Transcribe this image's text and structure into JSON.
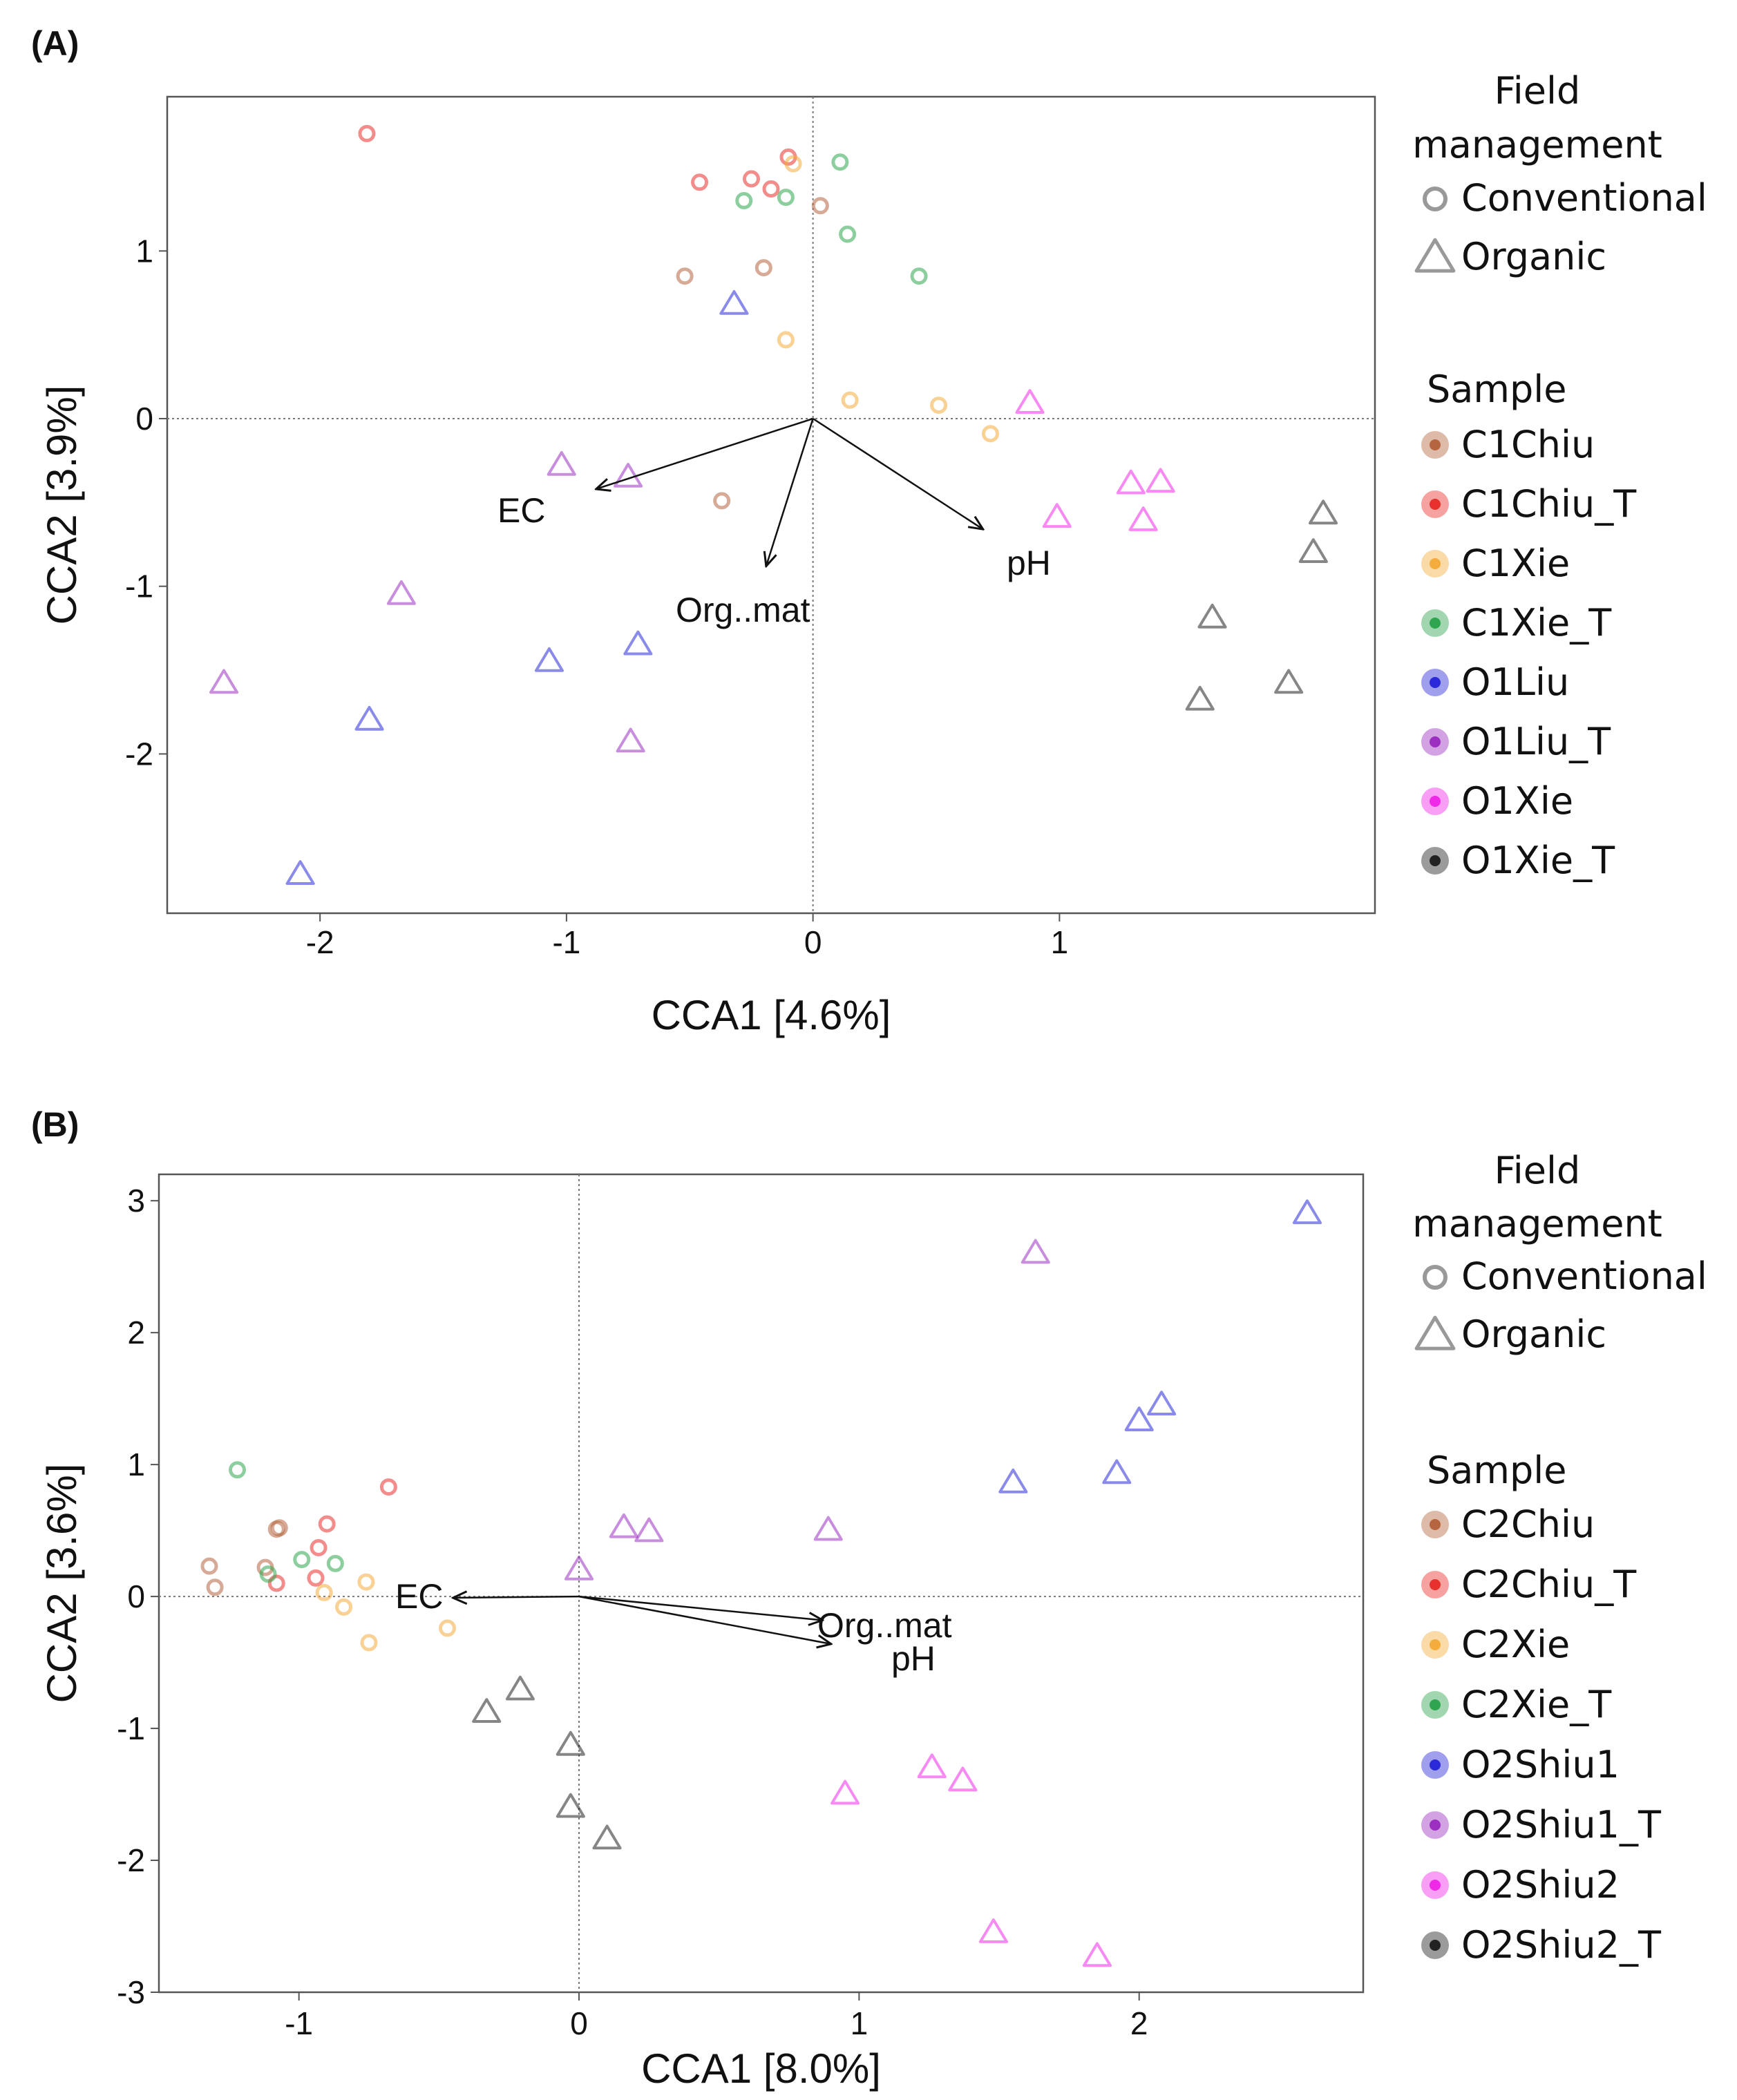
{
  "chart_data": [
    {
      "type": "scatter",
      "panel_label": "(A)",
      "xlabel": "CCA1  [4.6%]",
      "ylabel": "CCA2  [3.9%]",
      "xlim": [
        -2.62,
        2.28
      ],
      "ylim": [
        -2.95,
        1.92
      ],
      "xticks": [
        -2,
        -1,
        0,
        1
      ],
      "yticks": [
        -2,
        -1,
        0,
        1
      ],
      "xtick_labels": [
        "-2",
        "-1",
        "0",
        "1"
      ],
      "ytick_labels": [
        "-2",
        "-1",
        "0",
        "1"
      ],
      "legend": {
        "title1": "Field",
        "title2": "management",
        "shape_entries": [
          {
            "label": "Conventional",
            "shape": "circle"
          },
          {
            "label": "Organic",
            "shape": "triangle"
          }
        ],
        "sample_title": "Sample",
        "sample_entries": [
          {
            "label": "C1Chiu",
            "color": "#b5653f"
          },
          {
            "label": "C1Chiu_T",
            "color": "#e8302c"
          },
          {
            "label": "C1Xie",
            "color": "#f4ac3c"
          },
          {
            "label": "C1Xie_T",
            "color": "#2fa550"
          },
          {
            "label": "O1Liu",
            "color": "#2a2ad8"
          },
          {
            "label": "O1Liu_T",
            "color": "#9b30c0"
          },
          {
            "label": "O1Xie",
            "color": "#f028e8"
          },
          {
            "label": "O1Xie_T",
            "color": "#222222"
          }
        ]
      },
      "vectors": [
        {
          "label": "EC",
          "x": -0.88,
          "y": -0.42
        },
        {
          "label": "Org..mat",
          "x": -0.19,
          "y": -0.88
        },
        {
          "label": "pH",
          "x": 0.69,
          "y": -0.66
        }
      ],
      "series": [
        {
          "name": "C1Chiu",
          "shape": "circle",
          "color": "#b5653f",
          "points": [
            [
              -0.52,
              0.85
            ],
            [
              -0.2,
              0.9
            ],
            [
              0.03,
              1.27
            ],
            [
              -0.37,
              -0.49
            ]
          ]
        },
        {
          "name": "C1Chiu_T",
          "shape": "circle",
          "color": "#e8302c",
          "points": [
            [
              -1.81,
              1.7
            ],
            [
              -0.46,
              1.41
            ],
            [
              -0.25,
              1.43
            ],
            [
              -0.17,
              1.37
            ],
            [
              -0.1,
              1.56
            ]
          ]
        },
        {
          "name": "C1Xie",
          "shape": "circle",
          "color": "#f4ac3c",
          "points": [
            [
              -0.08,
              1.52
            ],
            [
              -0.11,
              0.47
            ],
            [
              0.15,
              0.11
            ],
            [
              0.51,
              0.08
            ],
            [
              0.72,
              -0.09
            ]
          ]
        },
        {
          "name": "C1Xie_T",
          "shape": "circle",
          "color": "#2fa550",
          "points": [
            [
              -0.28,
              1.3
            ],
            [
              -0.11,
              1.32
            ],
            [
              0.11,
              1.53
            ],
            [
              0.14,
              1.1
            ],
            [
              0.43,
              0.85
            ]
          ]
        },
        {
          "name": "O1Liu",
          "shape": "triangle",
          "color": "#2a2ad8",
          "points": [
            [
              -0.32,
              0.68
            ],
            [
              -1.07,
              -1.45
            ],
            [
              -0.71,
              -1.35
            ],
            [
              -1.8,
              -1.8
            ],
            [
              -2.08,
              -2.72
            ]
          ]
        },
        {
          "name": "O1Liu_T",
          "shape": "triangle",
          "color": "#9b30c0",
          "points": [
            [
              -1.02,
              -0.28
            ],
            [
              -0.75,
              -0.35
            ],
            [
              -1.67,
              -1.05
            ],
            [
              -2.39,
              -1.58
            ],
            [
              -0.74,
              -1.93
            ]
          ]
        },
        {
          "name": "O1Xie",
          "shape": "triangle",
          "color": "#f028e8",
          "points": [
            [
              0.88,
              0.09
            ],
            [
              1.29,
              -0.39
            ],
            [
              1.41,
              -0.38
            ],
            [
              0.99,
              -0.59
            ],
            [
              1.34,
              -0.61
            ]
          ]
        },
        {
          "name": "O1Xie_T",
          "shape": "triangle",
          "color": "#222222",
          "points": [
            [
              2.07,
              -0.57
            ],
            [
              2.03,
              -0.8
            ],
            [
              1.62,
              -1.19
            ],
            [
              1.57,
              -1.68
            ],
            [
              1.93,
              -1.58
            ]
          ]
        }
      ]
    },
    {
      "type": "scatter",
      "panel_label": "(B)",
      "xlabel": "CCA1  [8.0%]",
      "ylabel": "CCA2  [3.6%]",
      "xlim": [
        -1.5,
        2.8
      ],
      "ylim": [
        -3.0,
        3.2
      ],
      "xticks": [
        -1,
        0,
        1,
        2
      ],
      "yticks": [
        -3,
        -2,
        -1,
        0,
        1,
        2,
        3
      ],
      "xtick_labels": [
        "-1",
        "0",
        "1",
        "2"
      ],
      "ytick_labels": [
        "-3",
        "-2",
        "-1",
        "0",
        "1",
        "2",
        "3"
      ],
      "legend": {
        "title1": "Field",
        "title2": "management",
        "shape_entries": [
          {
            "label": "Conventional",
            "shape": "circle"
          },
          {
            "label": "Organic",
            "shape": "triangle"
          }
        ],
        "sample_title": "Sample",
        "sample_entries": [
          {
            "label": "C2Chiu",
            "color": "#b5653f"
          },
          {
            "label": "C2Chiu_T",
            "color": "#e8302c"
          },
          {
            "label": "C2Xie",
            "color": "#f4ac3c"
          },
          {
            "label": "C2Xie_T",
            "color": "#2fa550"
          },
          {
            "label": "O2Shiu1",
            "color": "#2a2ad8"
          },
          {
            "label": "O2Shiu1_T",
            "color": "#9b30c0"
          },
          {
            "label": "O2Shiu2",
            "color": "#f028e8"
          },
          {
            "label": "O2Shiu2_T",
            "color": "#222222"
          }
        ]
      },
      "vectors": [
        {
          "label": "EC",
          "x": -0.45,
          "y": -0.01
        },
        {
          "label": "Org..mat",
          "x": 0.87,
          "y": -0.18
        },
        {
          "label": "pH",
          "x": 0.9,
          "y": -0.36
        }
      ],
      "series": [
        {
          "name": "C2Chiu",
          "shape": "circle",
          "color": "#b5653f",
          "points": [
            [
              -1.32,
              0.23
            ],
            [
              -1.3,
              0.07
            ],
            [
              -1.12,
              0.22
            ],
            [
              -1.08,
              0.51
            ],
            [
              -1.07,
              0.52
            ]
          ]
        },
        {
          "name": "C2Chiu_T",
          "shape": "circle",
          "color": "#e8302c",
          "points": [
            [
              -0.68,
              0.83
            ],
            [
              -0.9,
              0.55
            ],
            [
              -0.93,
              0.37
            ],
            [
              -0.94,
              0.14
            ],
            [
              -1.08,
              0.1
            ]
          ]
        },
        {
          "name": "C2Xie",
          "shape": "circle",
          "color": "#f4ac3c",
          "points": [
            [
              -0.76,
              0.11
            ],
            [
              -0.91,
              0.03
            ],
            [
              -0.84,
              -0.08
            ],
            [
              -0.75,
              -0.35
            ],
            [
              -0.47,
              -0.24
            ]
          ]
        },
        {
          "name": "C2Xie_T",
          "shape": "circle",
          "color": "#2fa550",
          "points": [
            [
              -1.22,
              0.96
            ],
            [
              -0.99,
              0.28
            ],
            [
              -0.87,
              0.25
            ],
            [
              -1.11,
              0.17
            ]
          ]
        },
        {
          "name": "O2Shiu1",
          "shape": "triangle",
          "color": "#2a2ad8",
          "points": [
            [
              2.6,
              2.9
            ],
            [
              2.08,
              1.45
            ],
            [
              2.0,
              1.33
            ],
            [
              1.92,
              0.93
            ],
            [
              1.55,
              0.86
            ]
          ]
        },
        {
          "name": "O2Shiu1_T",
          "shape": "triangle",
          "color": "#9b30c0",
          "points": [
            [
              1.63,
              2.6
            ],
            [
              0.16,
              0.52
            ],
            [
              0.25,
              0.49
            ],
            [
              0.89,
              0.5
            ],
            [
              0.0,
              0.2
            ]
          ]
        },
        {
          "name": "O2Shiu2",
          "shape": "triangle",
          "color": "#f028e8",
          "points": [
            [
              1.26,
              -1.3
            ],
            [
              1.37,
              -1.4
            ],
            [
              0.95,
              -1.5
            ],
            [
              1.48,
              -2.55
            ],
            [
              1.85,
              -2.73
            ]
          ]
        },
        {
          "name": "O2Shiu2_T",
          "shape": "triangle",
          "color": "#222222",
          "points": [
            [
              -0.33,
              -0.88
            ],
            [
              -0.21,
              -0.71
            ],
            [
              -0.03,
              -1.13
            ],
            [
              -0.03,
              -1.6
            ],
            [
              0.1,
              -1.84
            ]
          ]
        }
      ]
    }
  ]
}
